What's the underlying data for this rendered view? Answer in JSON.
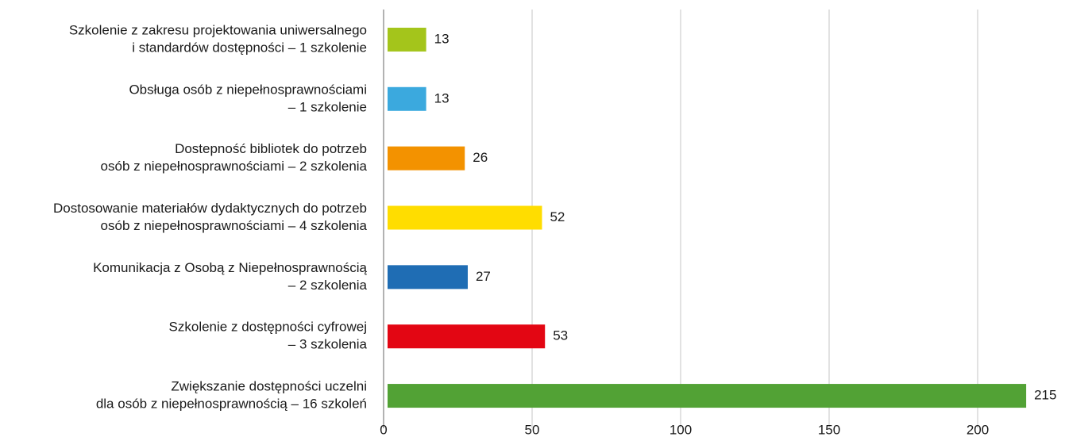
{
  "chart_data": {
    "type": "barh",
    "categories": [
      [
        "Szkolenie z zakresu projektowania uniwersalnego",
        "i standardów dostępności – 1 szkolenie"
      ],
      [
        "Obsługa osób z niepełnosprawnościami",
        "– 1 szkolenie"
      ],
      [
        "Dostepność bibliotek do potrzeb",
        "osób z niepełnosprawnościami – 2 szkolenia"
      ],
      [
        "Dostosowanie materiałów dydaktycznych do potrzeb",
        "osób z niepełnosprawnościami – 4 szkolenia"
      ],
      [
        "Komunikacja z Osobą z Niepełnosprawnością",
        "– 2 szkolenia"
      ],
      [
        "Szkolenie z dostępności cyfrowej",
        "– 3 szkolenia"
      ],
      [
        "Zwiększanie dostępności uczelni",
        "dla osób z niepełnosprawnością – 16 szkoleń"
      ]
    ],
    "values": [
      13,
      13,
      26,
      52,
      27,
      53,
      215
    ],
    "colors": [
      "#a4c51b",
      "#3ba9de",
      "#f39200",
      "#ffdd00",
      "#1f6db4",
      "#e30613",
      "#52a235"
    ],
    "xlim": [
      0,
      220
    ],
    "xticks": [
      0,
      50,
      100,
      150,
      200
    ],
    "grid": true
  }
}
